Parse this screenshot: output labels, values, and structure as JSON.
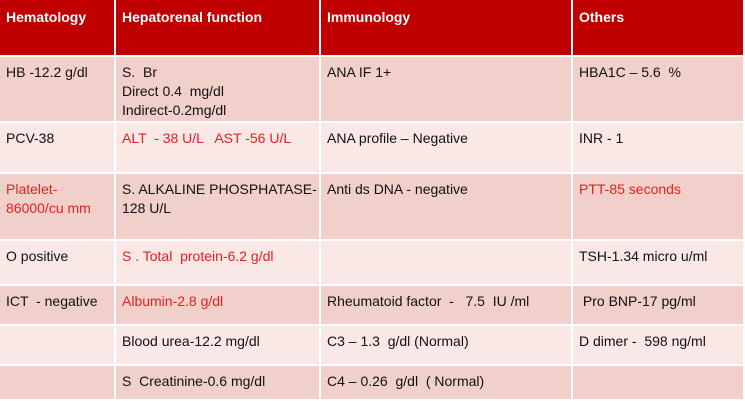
{
  "table": {
    "header": [
      "Hematology",
      "Hepatorenal function",
      "Immunology",
      "Others"
    ],
    "rows": [
      [
        {
          "lines": [
            "HB -12.2 g/dl"
          ]
        },
        {
          "lines": [
            "S.  Br",
            "Direct 0.4  mg/dl",
            "Indirect-0.2mg/dl"
          ]
        },
        {
          "lines": [
            "ANA IF 1+"
          ]
        },
        {
          "lines": [
            "HBA1C – 5.6  %"
          ]
        }
      ],
      [
        {
          "lines": [
            "PCV-38"
          ]
        },
        {
          "lines": [
            "ALT  - 38 U/L   AST -56 U/L"
          ],
          "color": "#e8201c"
        },
        {
          "lines": [
            "ANA profile – Negative"
          ]
        },
        {
          "lines": [
            "INR - 1"
          ]
        }
      ],
      [
        {
          "lines": [
            "Platelet-",
            "86000/cu mm"
          ],
          "color": "#e8201c"
        },
        {
          "lines": [
            "S. ALKALINE PHOSPHATASE-",
            "128 U/L"
          ]
        },
        {
          "lines": [
            "Anti ds DNA - negative"
          ]
        },
        {
          "lines": [
            "PTT-85 seconds"
          ],
          "color": "#e8201c"
        }
      ],
      [
        {
          "lines": [
            "O positive"
          ]
        },
        {
          "lines": [
            "S . Total  protein-6.2 g/dl"
          ],
          "color": "#e8201c"
        },
        {
          "lines": []
        },
        {
          "lines": [
            "TSH-1.34 micro u/ml"
          ]
        }
      ],
      [
        {
          "lines": [
            "ICT  - negative"
          ]
        },
        {
          "lines": [
            "Albumin-2.8 g/dl"
          ],
          "color": "#e8201c"
        },
        {
          "lines": [
            "Rheumatoid factor  -   7.5  IU /ml"
          ]
        },
        {
          "lines": [
            " Pro BNP-17 pg/ml"
          ]
        }
      ],
      [
        {
          "lines": []
        },
        {
          "lines": [
            "Blood urea-12.2 mg/dl"
          ]
        },
        {
          "lines": [
            "C3 – 1.3  g/dl (Normal)"
          ]
        },
        {
          "lines": [
            "D dimer -  598 ng/ml"
          ]
        }
      ],
      [
        {
          "lines": []
        },
        {
          "lines": [
            "S  Creatinine-0.6 mg/dl"
          ]
        },
        {
          "lines": [
            "C4 – 0.26  g/dl  ( Normal)"
          ]
        },
        {
          "lines": []
        }
      ]
    ]
  }
}
